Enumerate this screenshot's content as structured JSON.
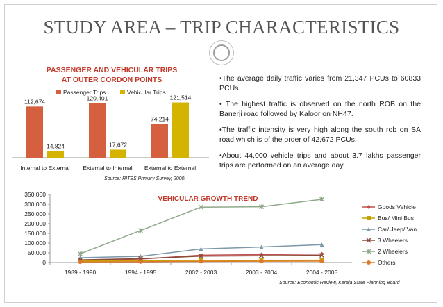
{
  "slide": {
    "title": "STUDY AREA – TRIP CHARACTERISTICS",
    "bullets": [
      "•The average daily traffic varies from 21,347 PCUs to 60833 PCUs.",
      "• The highest traffic is observed on the north ROB on the Banerji road followed by Kaloor on NH47.",
      "•The traffic intensity is very high along the south rob on SA road which is of the order of 42,672 PCUs.",
      "•About 44,000 vehicle trips and about 3.7 lakhs passenger trips are performed on an average day."
    ],
    "bar_source": "Source: RITES Primary Survey, 2000.",
    "line_source": "Source: Economic Review, Kerala State Planning Board"
  },
  "colors": {
    "passenger": "#d5603f",
    "vehicular": "#d4b400"
  },
  "chart_data": [
    {
      "type": "bar",
      "title": "PASSENGER AND VEHICULAR TRIPS AT OUTER CORDON POINTS",
      "title_lines": [
        "PASSENGER AND VEHICULAR TRIPS",
        "AT OUTER CORDON POINTS"
      ],
      "categories": [
        "Internal to External",
        "External to Internal",
        "External to External"
      ],
      "series": [
        {
          "name": "Passenger Trips",
          "color": "#d5603f",
          "values": [
            112674,
            120401,
            74214
          ],
          "labels": [
            "112,674",
            "120,401",
            "74,214"
          ]
        },
        {
          "name": "Vehicular Trips",
          "color": "#d4b400",
          "values": [
            14824,
            17672,
            121514
          ],
          "labels": [
            "14,824",
            "17,672",
            "121,514"
          ]
        }
      ],
      "legend": "top",
      "ylim": [
        0,
        130000
      ]
    },
    {
      "type": "line",
      "title": "VEHICULAR GROWTH TREND",
      "categories": [
        "1989 - 1990",
        "1994 - 1995",
        "2002 - 2003",
        "2003 - 2004",
        "2004 - 2005"
      ],
      "yticks": [
        "0",
        "50,000",
        "100,000",
        "150,000",
        "200,000",
        "250,000",
        "300,000",
        "350,000"
      ],
      "ylim": [
        0,
        350000
      ],
      "legend": "right",
      "series": [
        {
          "name": "Goods Vehicle",
          "color": "#c0504d",
          "marker": "diamond",
          "values": [
            12000,
            18000,
            38000,
            41000,
            44000
          ]
        },
        {
          "name": "Bus/ Mini Bus",
          "color": "#c4a300",
          "marker": "square",
          "values": [
            8000,
            9000,
            11000,
            11500,
            12000
          ]
        },
        {
          "name": "Car/ Jeep/ Van",
          "color": "#7c97a8",
          "marker": "triangle",
          "values": [
            25000,
            32000,
            70000,
            80000,
            92000
          ]
        },
        {
          "name": "3 Wheelers",
          "color": "#8b4a3a",
          "marker": "x",
          "values": [
            14000,
            20000,
            33000,
            35000,
            37000
          ]
        },
        {
          "name": "2 Wheelers",
          "color": "#8fa88a",
          "marker": "star",
          "values": [
            45000,
            165000,
            285000,
            287000,
            325000
          ]
        },
        {
          "name": "Others",
          "color": "#e07a2a",
          "marker": "circle",
          "values": [
            3000,
            4000,
            6000,
            6500,
            7000
          ]
        }
      ]
    }
  ]
}
